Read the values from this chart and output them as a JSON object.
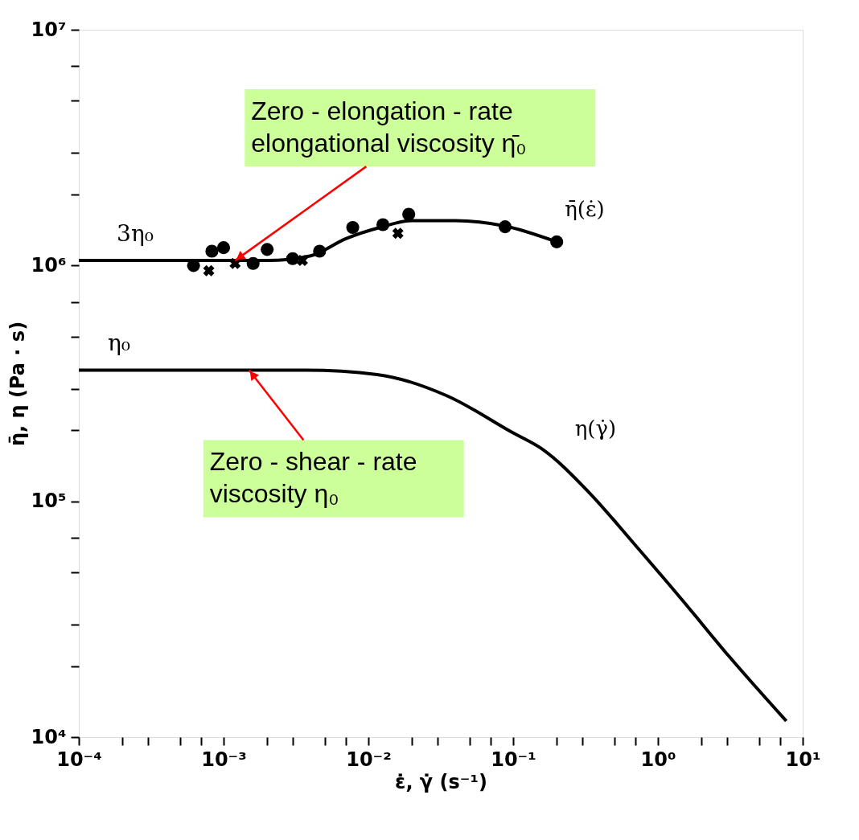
{
  "chart_data": {
    "type": "line",
    "xlabel": "ε̇, γ̇ (s⁻¹)",
    "ylabel": "η̄, η (Pa · s)",
    "log": "xy",
    "grid": false,
    "xlim": [
      0.0001,
      10
    ],
    "ylim": [
      10000,
      10000000
    ],
    "xticks": [
      {
        "value": 0.0001,
        "label": "10⁻⁴"
      },
      {
        "value": 0.0002,
        "label": null
      },
      {
        "value": 0.0003,
        "label": null
      },
      {
        "value": 0.0005,
        "label": null
      },
      {
        "value": 0.0007,
        "label": null
      },
      {
        "value": 0.001,
        "label": "10⁻³"
      },
      {
        "value": 0.002,
        "label": null
      },
      {
        "value": 0.003,
        "label": null
      },
      {
        "value": 0.005,
        "label": null
      },
      {
        "value": 0.007,
        "label": null
      },
      {
        "value": 0.01,
        "label": "10⁻²"
      },
      {
        "value": 0.02,
        "label": null
      },
      {
        "value": 0.03,
        "label": null
      },
      {
        "value": 0.05,
        "label": null
      },
      {
        "value": 0.07,
        "label": null
      },
      {
        "value": 0.1,
        "label": "10⁻¹"
      },
      {
        "value": 0.2,
        "label": null
      },
      {
        "value": 0.3,
        "label": null
      },
      {
        "value": 0.5,
        "label": null
      },
      {
        "value": 0.7,
        "label": null
      },
      {
        "value": 1,
        "label": "10⁰"
      },
      {
        "value": 2,
        "label": null
      },
      {
        "value": 3,
        "label": null
      },
      {
        "value": 5,
        "label": null
      },
      {
        "value": 7,
        "label": null
      },
      {
        "value": 10,
        "label": "10¹"
      }
    ],
    "yticks": [
      {
        "value": 10000,
        "label": "10⁴"
      },
      {
        "value": 20000,
        "label": null
      },
      {
        "value": 30000,
        "label": null
      },
      {
        "value": 50000,
        "label": null
      },
      {
        "value": 70000,
        "label": null
      },
      {
        "value": 100000,
        "label": "10⁵"
      },
      {
        "value": 200000,
        "label": null
      },
      {
        "value": 300000,
        "label": null
      },
      {
        "value": 500000,
        "label": null
      },
      {
        "value": 700000,
        "label": null
      },
      {
        "value": 1000000,
        "label": "10⁶"
      },
      {
        "value": 2000000,
        "label": null
      },
      {
        "value": 3000000,
        "label": null
      },
      {
        "value": 5000000,
        "label": null
      },
      {
        "value": 7000000,
        "label": null
      },
      {
        "value": 10000000,
        "label": "10⁷"
      }
    ],
    "series": [
      {
        "name": "η̄(ε̇)",
        "marker": "none",
        "line_style": "solid",
        "color": "#000000",
        "x": [
          0.0001,
          0.002,
          0.004,
          0.007,
          0.012,
          0.02,
          0.04,
          0.088,
          0.2
        ],
        "values": [
          1050000,
          1050000,
          1100000,
          1300000,
          1450000,
          1550000,
          1550000,
          1470000,
          1260000
        ]
      },
      {
        "type": "scatter",
        "marker": "circle",
        "color": "#000000",
        "x": [
          0.00062,
          0.00083,
          0.001,
          0.0016,
          0.002,
          0.003,
          0.0046,
          0.0078,
          0.0126,
          0.019,
          0.088,
          0.2
        ],
        "values": [
          1000000,
          1150000,
          1190000,
          1020000,
          1170000,
          1070000,
          1150000,
          1450000,
          1490000,
          1650000,
          1460000,
          1260000
        ]
      },
      {
        "type": "scatter",
        "marker": "cross",
        "color": "#000000",
        "x": [
          0.00079,
          0.0012,
          0.0035,
          0.016
        ],
        "values": [
          950000,
          1020000,
          1050000,
          1370000
        ]
      },
      {
        "name": "η(γ̇)",
        "marker": "none",
        "line_style": "solid",
        "color": "#000000",
        "x": [
          0.0001,
          0.0037,
          0.0115,
          0.035,
          0.1,
          0.16,
          0.33,
          0.7,
          1.48,
          3.1,
          7.7
        ],
        "values": [
          360000,
          360000,
          345000,
          280000,
          195000,
          166000,
          110000,
          65000,
          38000,
          22000,
          11700
        ]
      }
    ],
    "annotations": [
      {
        "text": "3η₀",
        "x": 0.0001,
        "y": 1050000
      },
      {
        "text": "η₀",
        "x": 0.0001,
        "y": 360000
      },
      {
        "text": "Zero - elongation - rate\nelongational viscosity η̄₀",
        "x": 0.0012,
        "y": 1050000
      },
      {
        "text": "Zero - shear - rate\nviscosity η₀",
        "x": 0.0015,
        "y": 360000
      }
    ]
  }
}
